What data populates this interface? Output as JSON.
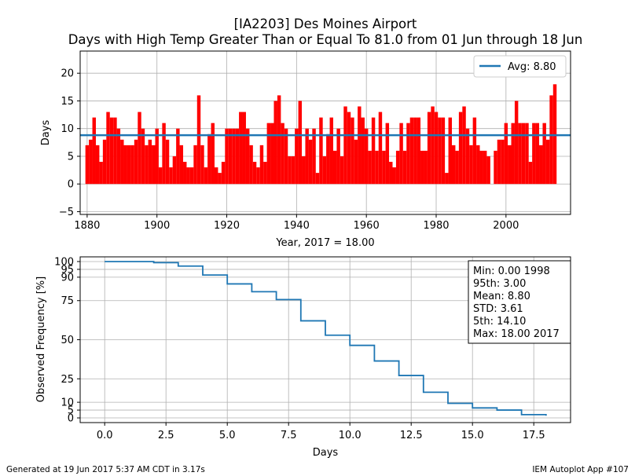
{
  "figure": {
    "title_line1": "[IA2203] Des Moines Airport",
    "title_line2": "Days with High Temp Greater Than or Equal To 81.0 from 01 Jun through 18 Jun",
    "footer_left": "Generated at 19 Jun 2017 5:37 AM CDT in 3.17s",
    "footer_right": "IEM Autoplot App #107"
  },
  "colors": {
    "bar": "#ff0000",
    "highlight_bar": "#008000",
    "avg_line": "#1f77b4",
    "freq_line": "#1f77b4",
    "grid": "#b0b0b0"
  },
  "chart_data": [
    {
      "type": "bar",
      "xlabel": "Year, 2017 = 18.00",
      "ylabel": "Days",
      "xlim": [
        1878,
        2018.5
      ],
      "ylim": [
        -5.5,
        24
      ],
      "xticks": [
        1880,
        1900,
        1920,
        1940,
        1960,
        1980,
        2000
      ],
      "yticks": [
        -5,
        0,
        5,
        10,
        15,
        20
      ],
      "grid": true,
      "legend": {
        "position": "top-right",
        "entries": [
          "Avg: 8.80"
        ]
      },
      "average": 8.8,
      "highlight_year": 2017,
      "start_year": 1880,
      "values": [
        7,
        8,
        12,
        7,
        4,
        8,
        13,
        12,
        12,
        10,
        8,
        7,
        7,
        7,
        8,
        13,
        10,
        7,
        8,
        7,
        10,
        3,
        11,
        8,
        3,
        5,
        10,
        7,
        4,
        3,
        3,
        7,
        16,
        7,
        3,
        9,
        11,
        3,
        2,
        4,
        10,
        10,
        10,
        10,
        13,
        13,
        10,
        7,
        4,
        3,
        7,
        4,
        11,
        11,
        15,
        16,
        11,
        10,
        5,
        5,
        10,
        15,
        5,
        10,
        8,
        10,
        2,
        12,
        5,
        9,
        12,
        6,
        10,
        5,
        14,
        13,
        12,
        8,
        14,
        12,
        10,
        6,
        12,
        6,
        13,
        6,
        11,
        4,
        3,
        6,
        11,
        6,
        11,
        12,
        12,
        12,
        6,
        6,
        13,
        14,
        13,
        12,
        12,
        2,
        12,
        7,
        6,
        13,
        14,
        10,
        7,
        12,
        7,
        6,
        6,
        5,
        0,
        6,
        8,
        8,
        11,
        7,
        11,
        15,
        11,
        11,
        11,
        4,
        11,
        11,
        7,
        11,
        8,
        16,
        18
      ]
    },
    {
      "type": "line",
      "xlabel": "Days",
      "ylabel": "Observed Frequency [%]",
      "xlim": [
        -1,
        19
      ],
      "ylim": [
        -3,
        103
      ],
      "xticks": [
        0.0,
        2.5,
        5.0,
        7.5,
        10.0,
        12.5,
        15.0,
        17.5
      ],
      "xtick_labels": [
        "0.0",
        "2.5",
        "5.0",
        "7.5",
        "10.0",
        "12.5",
        "15.0",
        "17.5"
      ],
      "yticks": [
        0,
        5,
        10,
        25,
        50,
        75,
        90,
        95,
        100
      ],
      "grid": true,
      "x": [
        0,
        2,
        3,
        4,
        5,
        6,
        7,
        8,
        9,
        10,
        11,
        12,
        13,
        14,
        15,
        16,
        17,
        18
      ],
      "y": [
        100,
        99.3,
        97.1,
        91.4,
        85.7,
        80.7,
        75.7,
        62.1,
        52.9,
        46.4,
        36.4,
        27.1,
        16.4,
        9.3,
        6.4,
        5.0,
        2.1,
        1.4
      ],
      "stats": [
        "Min: 0.00 1998",
        "95th: 3.00",
        "Mean: 8.80",
        "STD: 3.61",
        "5th: 14.10",
        "Max: 18.00 2017"
      ]
    }
  ]
}
